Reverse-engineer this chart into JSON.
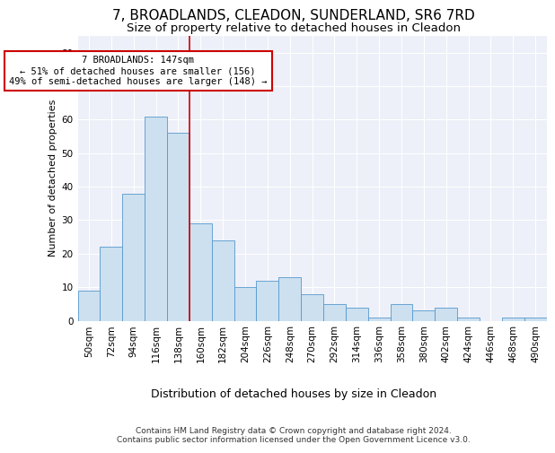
{
  "title_line1": "7, BROADLANDS, CLEADON, SUNDERLAND, SR6 7RD",
  "title_line2": "Size of property relative to detached houses in Cleadon",
  "xlabel": "Distribution of detached houses by size in Cleadon",
  "ylabel": "Number of detached properties",
  "categories": [
    "50sqm",
    "72sqm",
    "94sqm",
    "116sqm",
    "138sqm",
    "160sqm",
    "182sqm",
    "204sqm",
    "226sqm",
    "248sqm",
    "270sqm",
    "292sqm",
    "314sqm",
    "336sqm",
    "358sqm",
    "380sqm",
    "402sqm",
    "424sqm",
    "446sqm",
    "468sqm",
    "490sqm"
  ],
  "values": [
    9,
    22,
    38,
    61,
    56,
    29,
    24,
    10,
    12,
    13,
    8,
    5,
    4,
    1,
    5,
    3,
    4,
    1,
    0,
    1,
    1
  ],
  "bar_color": "#cce0f0",
  "bar_edge_color": "#5599cc",
  "ylim": [
    0,
    85
  ],
  "yticks": [
    0,
    10,
    20,
    30,
    40,
    50,
    60,
    70,
    80
  ],
  "vline_x": 4.5,
  "vline_color": "#cc0000",
  "annotation_text": "7 BROADLANDS: 147sqm\n← 51% of detached houses are smaller (156)\n49% of semi-detached houses are larger (148) →",
  "annotation_box_color": "#ffffff",
  "annotation_box_edge_color": "#cc0000",
  "footer_line1": "Contains HM Land Registry data © Crown copyright and database right 2024.",
  "footer_line2": "Contains public sector information licensed under the Open Government Licence v3.0.",
  "fig_facecolor": "#ffffff",
  "ax_facecolor": "#edf0f8",
  "grid_color": "#ffffff",
  "title_fontsize": 11,
  "subtitle_fontsize": 9.5,
  "ylabel_fontsize": 8,
  "xlabel_fontsize": 9,
  "tick_fontsize": 7.5,
  "annotation_fontsize": 7.5,
  "footer_fontsize": 6.5
}
